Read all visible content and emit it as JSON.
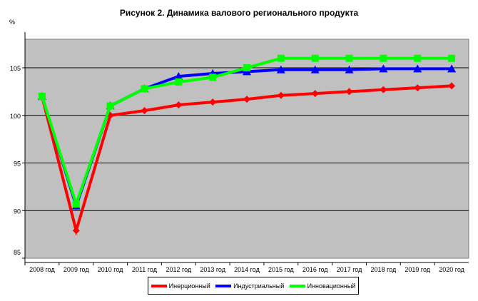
{
  "chart_data": {
    "type": "line",
    "title": "Рисунок 2. Динамика валового регионального продукта",
    "ylabel": "%",
    "xlabel": "",
    "ylim": [
      85,
      108
    ],
    "yticks": [
      85,
      90,
      95,
      100,
      105
    ],
    "categories": [
      "2008 год",
      "2009 год",
      "2010 год",
      "2011 год",
      "2012 год",
      "2013 год",
      "2014 год",
      "2015 год",
      "2016 год",
      "2017 год",
      "2018 год",
      "2019 год",
      "2020 год"
    ],
    "grid": true,
    "legend_position": "bottom",
    "series": [
      {
        "name": "Инерционный",
        "color": "#ff0000",
        "marker": "diamond",
        "values": [
          102,
          87.9,
          100,
          100.5,
          101.1,
          101.4,
          101.7,
          102.1,
          102.3,
          102.5,
          102.7,
          102.9,
          103.1
        ]
      },
      {
        "name": "Индустриальный",
        "color": "#0000ff",
        "marker": "triangle",
        "values": [
          102,
          90.5,
          101,
          102.8,
          104.1,
          104.4,
          104.6,
          104.8,
          104.8,
          104.8,
          104.9,
          104.9,
          104.9
        ]
      },
      {
        "name": "Инновационный",
        "color": "#00ff00",
        "marker": "square",
        "values": [
          102,
          90.7,
          101,
          102.8,
          103.5,
          104.0,
          105.0,
          106,
          106,
          106,
          106,
          106,
          106
        ]
      }
    ]
  }
}
